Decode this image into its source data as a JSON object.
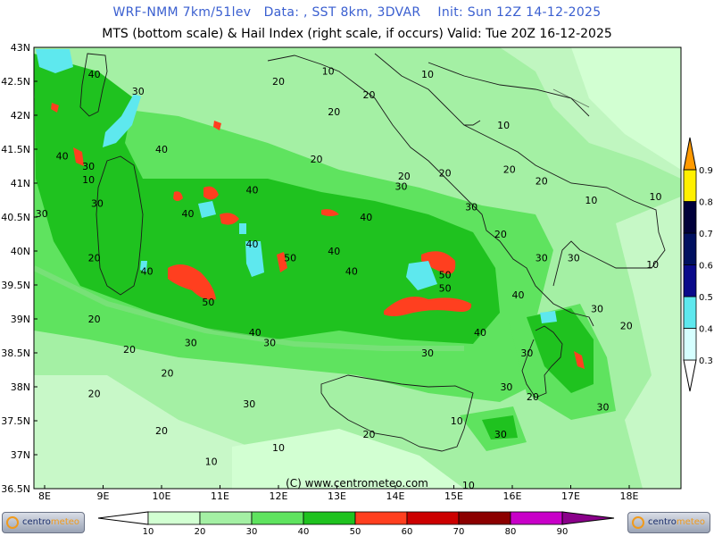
{
  "header": {
    "line1": "WRF-NMM 7km/51lev   Data: , SST 8km, 3DVAR    Init: Sun 12Z 14-12-2025",
    "line2": "MTS (bottom scale) & Hail Index (right scale, if occurs) Valid: Tue 20Z 16-12-2025"
  },
  "map": {
    "lat_labels": [
      "43N",
      "42.5N",
      "42N",
      "41.5N",
      "41N",
      "40.5N",
      "40N",
      "39.5N",
      "39N",
      "38.5N",
      "38N",
      "37.5N",
      "37N",
      "36.5N"
    ],
    "lon_labels": [
      "8E",
      "9E",
      "10E",
      "11E",
      "12E",
      "13E",
      "14E",
      "15E",
      "16E",
      "17E",
      "18E"
    ],
    "copyright": "(C) www.centrometeo.com",
    "contour_labels": [
      {
        "t": "10",
        "lon": 14.55,
        "lat": 42.55
      },
      {
        "t": "20",
        "lon": 12.0,
        "lat": 42.45
      },
      {
        "t": "10",
        "lon": 12.85,
        "lat": 42.6
      },
      {
        "t": "40",
        "lon": 8.85,
        "lat": 42.55
      },
      {
        "t": "30",
        "lon": 9.6,
        "lat": 42.3
      },
      {
        "t": "20",
        "lon": 13.55,
        "lat": 42.25
      },
      {
        "t": "20",
        "lon": 12.95,
        "lat": 42.0
      },
      {
        "t": "10",
        "lon": 15.85,
        "lat": 41.8
      },
      {
        "t": "40",
        "lon": 10.0,
        "lat": 41.45
      },
      {
        "t": "40",
        "lon": 8.3,
        "lat": 41.35
      },
      {
        "t": "30",
        "lon": 8.75,
        "lat": 41.2
      },
      {
        "t": "20",
        "lon": 12.65,
        "lat": 41.3
      },
      {
        "t": "20",
        "lon": 14.15,
        "lat": 41.05
      },
      {
        "t": "20",
        "lon": 14.85,
        "lat": 41.1
      },
      {
        "t": "20",
        "lon": 15.95,
        "lat": 41.15
      },
      {
        "t": "30",
        "lon": 14.1,
        "lat": 40.9
      },
      {
        "t": "10",
        "lon": 8.75,
        "lat": 41.0
      },
      {
        "t": "20",
        "lon": 16.5,
        "lat": 40.98
      },
      {
        "t": "40",
        "lon": 11.55,
        "lat": 40.85
      },
      {
        "t": "30",
        "lon": 8.9,
        "lat": 40.65
      },
      {
        "t": "10",
        "lon": 17.35,
        "lat": 40.7
      },
      {
        "t": "10",
        "lon": 18.45,
        "lat": 40.75
      },
      {
        "t": "40",
        "lon": 10.45,
        "lat": 40.5
      },
      {
        "t": "30",
        "lon": 7.95,
        "lat": 40.5
      },
      {
        "t": "40",
        "lon": 13.5,
        "lat": 40.45
      },
      {
        "t": "30",
        "lon": 15.3,
        "lat": 40.6
      },
      {
        "t": "20",
        "lon": 15.8,
        "lat": 40.2
      },
      {
        "t": "40",
        "lon": 11.55,
        "lat": 40.05
      },
      {
        "t": "40",
        "lon": 12.95,
        "lat": 39.95
      },
      {
        "t": "20",
        "lon": 8.85,
        "lat": 39.85
      },
      {
        "t": "50",
        "lon": 12.2,
        "lat": 39.85
      },
      {
        "t": "30",
        "lon": 16.5,
        "lat": 39.85
      },
      {
        "t": "30",
        "lon": 17.05,
        "lat": 39.85
      },
      {
        "t": "10",
        "lon": 18.4,
        "lat": 39.75
      },
      {
        "t": "40",
        "lon": 9.75,
        "lat": 39.65
      },
      {
        "t": "40",
        "lon": 13.25,
        "lat": 39.65
      },
      {
        "t": "50",
        "lon": 14.85,
        "lat": 39.6
      },
      {
        "t": "50",
        "lon": 14.85,
        "lat": 39.4
      },
      {
        "t": "40",
        "lon": 16.1,
        "lat": 39.3
      },
      {
        "t": "50",
        "lon": 10.8,
        "lat": 39.2
      },
      {
        "t": "30",
        "lon": 17.45,
        "lat": 39.1
      },
      {
        "t": "20",
        "lon": 8.85,
        "lat": 38.95
      },
      {
        "t": "40",
        "lon": 11.6,
        "lat": 38.75
      },
      {
        "t": "40",
        "lon": 15.45,
        "lat": 38.75
      },
      {
        "t": "20",
        "lon": 17.95,
        "lat": 38.85
      },
      {
        "t": "30",
        "lon": 10.5,
        "lat": 38.6
      },
      {
        "t": "30",
        "lon": 11.85,
        "lat": 38.6
      },
      {
        "t": "20",
        "lon": 9.45,
        "lat": 38.5
      },
      {
        "t": "30",
        "lon": 14.55,
        "lat": 38.45
      },
      {
        "t": "30",
        "lon": 16.25,
        "lat": 38.45
      },
      {
        "t": "20",
        "lon": 10.1,
        "lat": 38.15
      },
      {
        "t": "30",
        "lon": 15.9,
        "lat": 37.95
      },
      {
        "t": "20",
        "lon": 8.85,
        "lat": 37.85
      },
      {
        "t": "20",
        "lon": 16.35,
        "lat": 37.8
      },
      {
        "t": "30",
        "lon": 11.5,
        "lat": 37.7
      },
      {
        "t": "30",
        "lon": 17.55,
        "lat": 37.65
      },
      {
        "t": "10",
        "lon": 15.05,
        "lat": 37.45
      },
      {
        "t": "20",
        "lon": 10.0,
        "lat": 37.3
      },
      {
        "t": "20",
        "lon": 13.55,
        "lat": 37.25
      },
      {
        "t": "30",
        "lon": 15.8,
        "lat": 37.25
      },
      {
        "t": "10",
        "lon": 12.0,
        "lat": 37.05
      },
      {
        "t": "10",
        "lon": 10.85,
        "lat": 36.85
      },
      {
        "t": "10",
        "lon": 15.25,
        "lat": 36.5
      }
    ]
  },
  "colorbar_bottom": {
    "labels": [
      "10",
      "20",
      "30",
      "40",
      "50",
      "60",
      "70",
      "80",
      "90"
    ],
    "colors": [
      "#d2ffd2",
      "#a4f0a4",
      "#5fe35f",
      "#1fc21f",
      "#ff3f1f",
      "#cc0000",
      "#8b0000",
      "#c800c8",
      "#8a008a"
    ]
  },
  "colorbar_right": {
    "labels": [
      "0.3",
      "0.4",
      "0.5",
      "0.6",
      "0.7",
      "0.8",
      "0.9"
    ],
    "colors": [
      "#d6ffff",
      "#5ee8ee",
      "#0a0a8a",
      "#001060",
      "#00003a",
      "#fff000",
      "#ff9a00"
    ]
  },
  "logos": {
    "left_text_a": "centro",
    "left_text_b": "meteo"
  }
}
